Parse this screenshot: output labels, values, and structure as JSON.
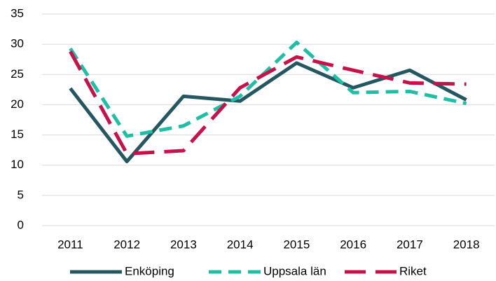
{
  "chart_data": {
    "type": "line",
    "categories": [
      "2011",
      "2012",
      "2013",
      "2014",
      "2015",
      "2016",
      "2017",
      "2018"
    ],
    "series": [
      {
        "name": "Enköping",
        "color": "#24575f",
        "values": [
          22.7,
          10.6,
          21.4,
          20.6,
          26.9,
          22.8,
          25.7,
          20.8
        ]
      },
      {
        "name": "Uppsala län",
        "color": "#1fbfa6",
        "values": [
          29.3,
          14.8,
          16.5,
          21.4,
          30.3,
          22.0,
          22.2,
          20.2
        ]
      },
      {
        "name": "Riket",
        "color": "#c8104a",
        "values": [
          28.8,
          11.9,
          12.4,
          22.8,
          27.9,
          25.7,
          23.6,
          23.4
        ]
      }
    ],
    "ylim": [
      0,
      35
    ],
    "yticks": [
      0,
      5,
      10,
      15,
      20,
      25,
      30,
      35
    ],
    "grid": true,
    "legend": "bottom"
  }
}
